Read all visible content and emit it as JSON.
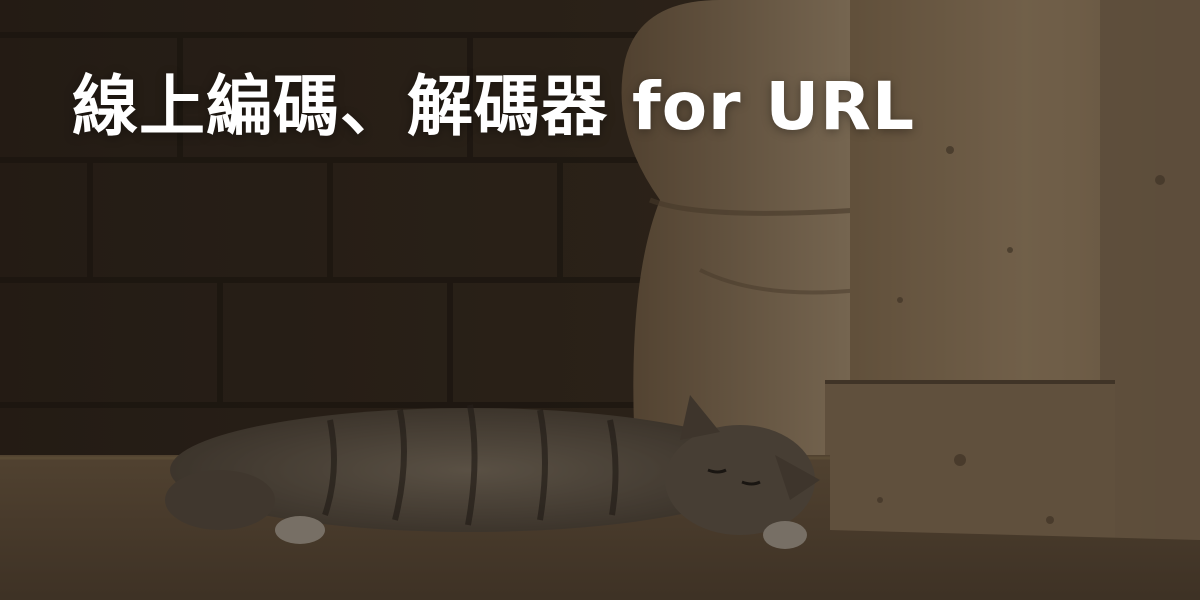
{
  "hero": {
    "title": "線上編碼、解碼器 for URL",
    "image_subject": "cat-sleeping-on-stone-ledge"
  },
  "colors": {
    "title_text": "#ffffff",
    "overlay": "#000000",
    "wall_dark": "#4a3a2a",
    "stone_light": "#c8a981",
    "cat_fur": "#8a7b68"
  },
  "icons": {
    "cat": "sleeping-cat-icon"
  }
}
